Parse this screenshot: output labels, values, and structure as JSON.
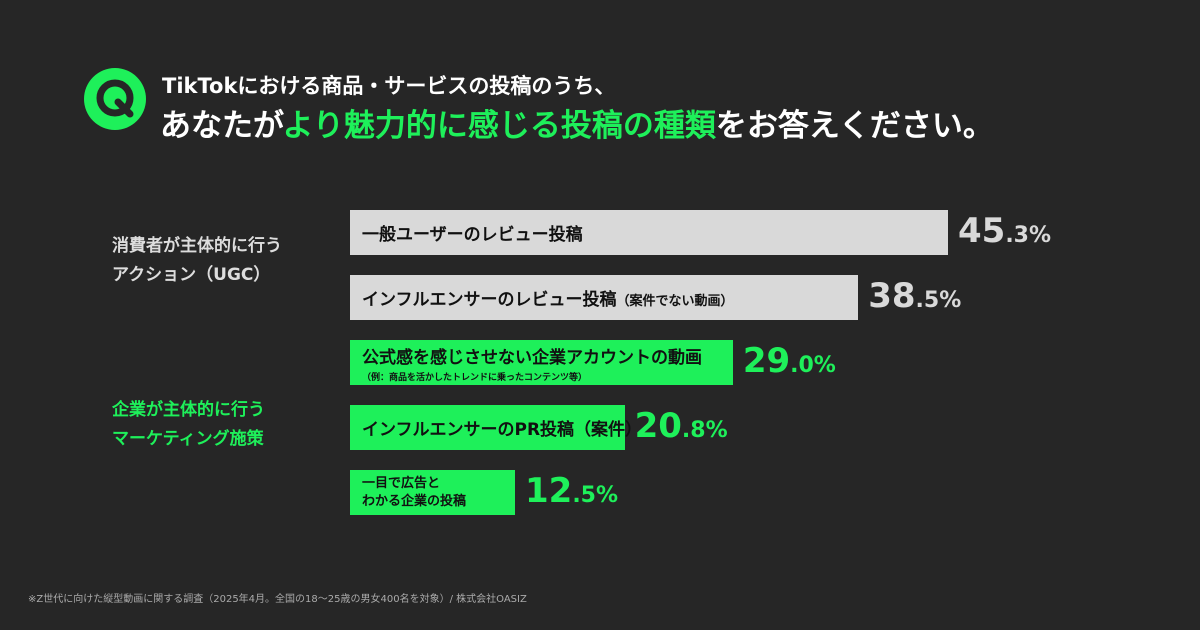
{
  "title": {
    "line1": "TikTokにおける商品・サービスの投稿のうち、",
    "line2_pre": "あなたが",
    "line2_hl": "より魅力的に感じる投稿の種類",
    "line2_post": "をお答えください。"
  },
  "groups": [
    {
      "line1": "消費者が主体的に行う",
      "line2": "アクション（UGC）",
      "color": "#d9d9d9"
    },
    {
      "line1": "企業が主体的に行う",
      "line2": "マーケティング施策",
      "color": "#1ef05a"
    }
  ],
  "chart_data": {
    "type": "bar",
    "orientation": "horizontal",
    "categories": [
      "一般ユーザーのレビュー投稿",
      "インフルエンサーのレビュー投稿（案件でない動画）",
      "公式感を感じさせない企業アカウントの動画（例：商品を活かしたトレンドに乗ったコンテンツ等）",
      "インフルエンサーのPR投稿（案件）",
      "一目で広告とわかる企業の投稿"
    ],
    "values": [
      45.3,
      38.5,
      29.0,
      20.8,
      12.5
    ],
    "unit": "%",
    "xlim": [
      0,
      45.3
    ],
    "bars": [
      {
        "main": "一般ユーザーのレビュー投稿",
        "sub": "",
        "value_int": "45",
        "value_dec": ".3%",
        "group": 0
      },
      {
        "main": "インフルエンサーのレビュー投稿",
        "sub": "（案件でない動画）",
        "value_int": "38",
        "value_dec": ".5%",
        "group": 0
      },
      {
        "main": "公式感を感じさせない企業アカウントの動画",
        "note": "（例：商品を活かしたトレンドに乗ったコンテンツ等）",
        "value_int": "29",
        "value_dec": ".0%",
        "group": 1
      },
      {
        "main": "インフルエンサーのPR投稿（案件）",
        "sub": "",
        "value_int": "20",
        "value_dec": ".8%",
        "group": 1
      },
      {
        "line1": "一目で広告と",
        "line2": "わかる企業の投稿",
        "value_int": "12",
        "value_dec": ".5%",
        "group": 1
      }
    ]
  },
  "footnote": "※Z世代に向けた縦型動画に関する調査（2025年4月。全国の18～25歳の男女400名を対象）/ 株式会社OASIZ"
}
